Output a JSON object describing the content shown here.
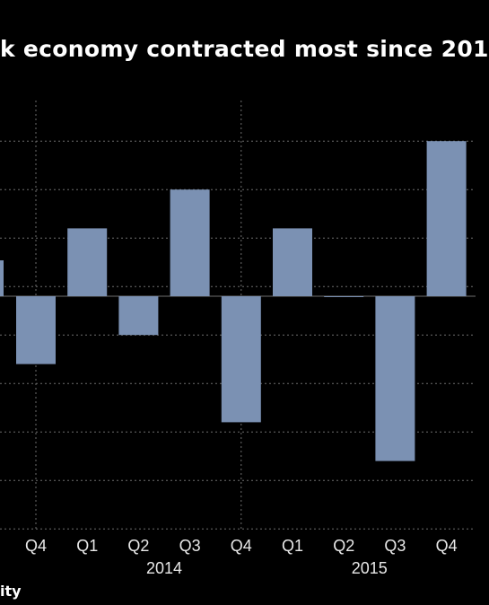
{
  "title": "k economy contracted most since 201",
  "source": "ity",
  "colors": {
    "background": "#000000",
    "bar": "#7b91b3",
    "grid": "#6e6e6e",
    "text": "#ffffff"
  },
  "chart_data": {
    "type": "bar",
    "categories": [
      "Q4",
      "Q1",
      "Q2",
      "Q3",
      "Q4",
      "Q1",
      "Q2",
      "Q3",
      "Q4"
    ],
    "year_groups": [
      {
        "label": "2014",
        "start": 1,
        "end": 4
      },
      {
        "label": "2015",
        "start": 5,
        "end": 8
      }
    ],
    "values": [
      -0.7,
      0.7,
      -0.4,
      1.1,
      -1.3,
      0.7,
      0.0,
      -1.7,
      1.6
    ],
    "partial_left_value": 0.37,
    "ylim": [
      -2.4,
      2.0
    ],
    "grid": true,
    "xlabel": "",
    "ylabel": ""
  }
}
